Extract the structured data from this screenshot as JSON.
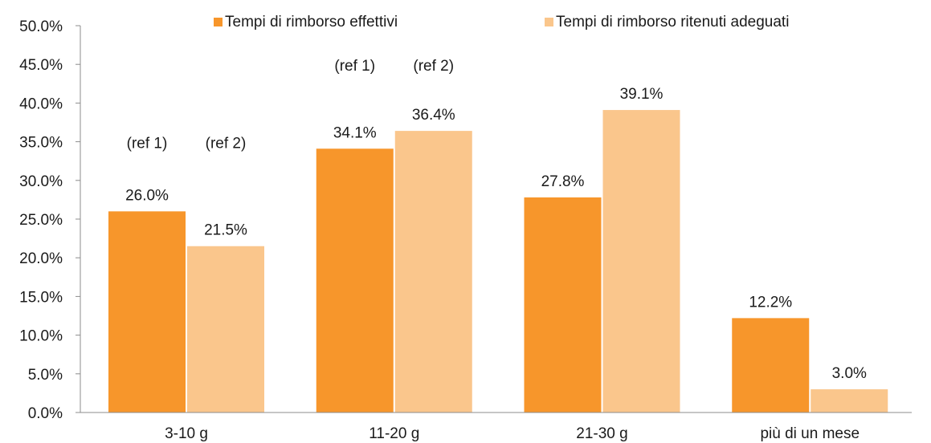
{
  "chart_data": {
    "type": "bar",
    "categories": [
      "3-10 g",
      "11-20 g",
      "21-30 g",
      "più di un mese"
    ],
    "series": [
      {
        "name": "Tempi di rimborso effettivi",
        "values": [
          26.0,
          34.1,
          27.8,
          12.2
        ],
        "color": "#f7962b"
      },
      {
        "name": "Tempi di rimborso ritenuti adeguati",
        "values": [
          21.5,
          36.4,
          39.1,
          3.0
        ],
        "color": "#fac68c"
      }
    ],
    "data_labels": [
      [
        "26.0%",
        "34.1%",
        "27.8%",
        "12.2%"
      ],
      [
        "21.5%",
        "36.4%",
        "39.1%",
        "3.0%"
      ]
    ],
    "y_ticks": [
      "0.0%",
      "5.0%",
      "10.0%",
      "15.0%",
      "20.0%",
      "25.0%",
      "30.0%",
      "35.0%",
      "40.0%",
      "45.0%",
      "50.0%"
    ],
    "ylim": [
      0,
      50
    ],
    "grid": false,
    "legend": "top",
    "annotations": [
      {
        "text": "(ref 1)",
        "category": 0,
        "series": 0,
        "y": 34.2
      },
      {
        "text": "(ref 2)",
        "category": 0,
        "series": 1,
        "y": 34.2
      },
      {
        "text": "(ref 1)",
        "category": 1,
        "series": 0,
        "y": 44.2
      },
      {
        "text": "(ref 2)",
        "category": 1,
        "series": 1,
        "y": 44.2
      }
    ]
  }
}
